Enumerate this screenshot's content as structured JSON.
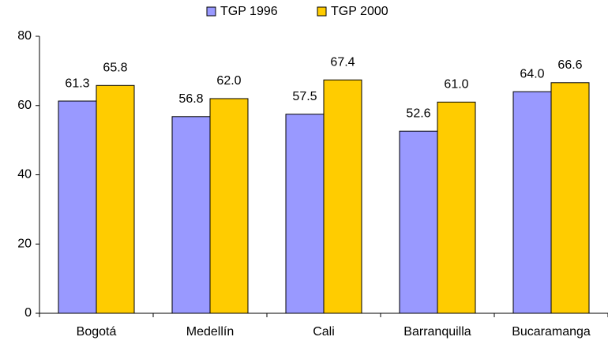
{
  "chart_data": {
    "type": "bar",
    "categories": [
      "Bogotá",
      "Medellín",
      "Cali",
      "Barranquilla",
      "Bucaramanga"
    ],
    "series": [
      {
        "name": "TGP 1996",
        "color": "#9999ff",
        "values": [
          61.3,
          56.8,
          57.5,
          52.6,
          64.0
        ],
        "value_labels": [
          "61.3",
          "56.8",
          "57.5",
          "52.6",
          "64.0"
        ]
      },
      {
        "name": "TGP 2000",
        "color": "#ffcc00",
        "values": [
          65.8,
          62.0,
          67.4,
          61.0,
          66.6
        ],
        "value_labels": [
          "65.8",
          "62.0",
          "67.4",
          "61.0",
          "66.6"
        ]
      }
    ],
    "ylim": [
      0,
      80
    ],
    "yticks": [
      0,
      20,
      40,
      60,
      80
    ],
    "legend": "top"
  }
}
